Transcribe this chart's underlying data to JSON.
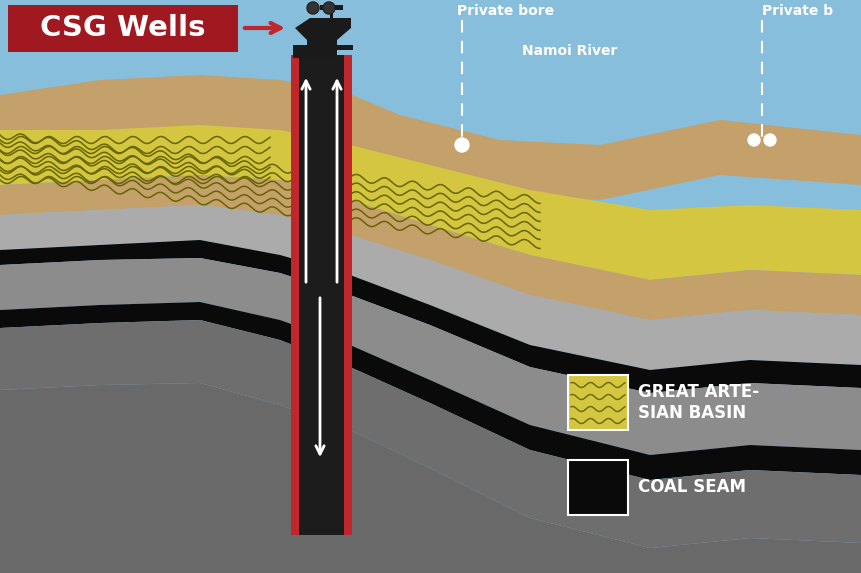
{
  "fig_w": 8.61,
  "fig_h": 5.73,
  "dpi": 100,
  "sky_color": "#87BEDB",
  "colors": {
    "sandy_tan": "#C4A06A",
    "artesian_yellow": "#D4C640",
    "wave_dark": "#666600",
    "light_grey": "#ABABAB",
    "mid_grey": "#8C8C8C",
    "dark_grey": "#6E6E6E",
    "darker_grey": "#5A5A5A",
    "coal_black": "#0A0A0A",
    "bg_grey": "#696969",
    "well_red": "#C0272D",
    "well_dark": "#1A1A1A"
  },
  "csg_label": "CSG Wells",
  "csg_bg": "#A01820",
  "private_bore_label": "Private bore",
  "namoi_river_label": "Namoi River",
  "private_b_label": "Private b",
  "great_artesian_label": "GREAT ARTE-\nSIAN BASIN",
  "coal_seam_label": "COAL SEAM"
}
